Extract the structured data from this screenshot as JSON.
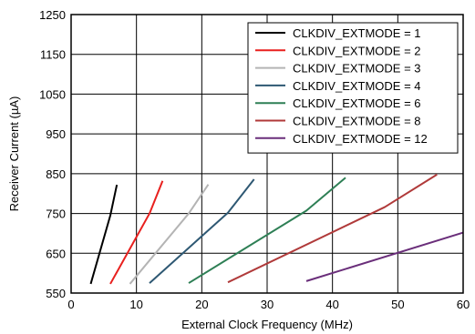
{
  "chart_data": {
    "type": "line",
    "title": "",
    "xlabel": "External Clock Frequency (MHz)",
    "ylabel": "Receiver Current (µA)",
    "xlim": [
      0,
      60
    ],
    "ylim": [
      550,
      1250
    ],
    "xticks": [
      0,
      10,
      20,
      30,
      40,
      50,
      60
    ],
    "yticks": [
      550,
      650,
      750,
      850,
      950,
      1050,
      1150,
      1250
    ],
    "grid": true,
    "legend_position": "top-right",
    "series": [
      {
        "name": "CLKDIV_EXTMODE = 1",
        "color": "#000000",
        "x": [
          3,
          6,
          7
        ],
        "y": [
          573,
          745,
          822
        ]
      },
      {
        "name": "CLKDIV_EXTMODE = 2",
        "color": "#e8201e",
        "x": [
          6,
          12,
          14
        ],
        "y": [
          573,
          750,
          832
        ]
      },
      {
        "name": "CLKDIV_EXTMODE = 3",
        "color": "#b4b4b4",
        "x": [
          9,
          18,
          21
        ],
        "y": [
          573,
          750,
          823
        ]
      },
      {
        "name": "CLKDIV_EXTMODE = 4",
        "color": "#2e5873",
        "x": [
          12,
          24,
          28
        ],
        "y": [
          575,
          752,
          836
        ]
      },
      {
        "name": "CLKDIV_EXTMODE = 6",
        "color": "#2e7f55",
        "x": [
          18,
          36,
          42
        ],
        "y": [
          575,
          757,
          840
        ]
      },
      {
        "name": "CLKDIV_EXTMODE = 8",
        "color": "#b03a3a",
        "x": [
          24,
          48,
          56
        ],
        "y": [
          577,
          766,
          848
        ]
      },
      {
        "name": "CLKDIV_EXTMODE = 12",
        "color": "#6a2e7a",
        "x": [
          36,
          60
        ],
        "y": [
          580,
          702
        ]
      }
    ]
  }
}
